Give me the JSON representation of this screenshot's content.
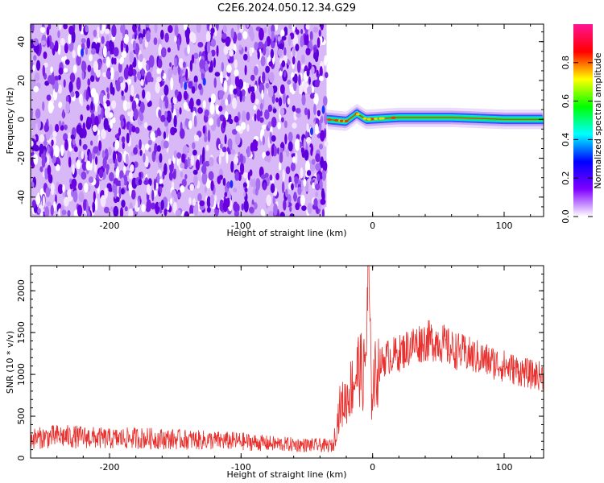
{
  "title": "C2E6.2024.050.12.34.G29",
  "chart_data": [
    {
      "type": "heatmap",
      "title": "C2E6.2024.050.12.34.G29",
      "xlabel": "Height of straight line (km)",
      "ylabel": "Frequency (Hz)",
      "xlim": [
        -260,
        130
      ],
      "ylim": [
        -50,
        49
      ],
      "xticks": [
        -200,
        -100,
        0,
        100
      ],
      "yticks": [
        -40,
        -20,
        0,
        20,
        40
      ],
      "noise_region": {
        "x_range": [
          -260,
          -35
        ],
        "frequency_range": [
          -50,
          49
        ],
        "amplitude": "low (0.0-0.2)"
      },
      "signal_track": {
        "x_range": [
          -35,
          130
        ],
        "center_frequency_hz": [
          {
            "x": -35,
            "f": 0
          },
          {
            "x": -20,
            "f": -1
          },
          {
            "x": -12,
            "f": 3
          },
          {
            "x": -5,
            "f": 0
          },
          {
            "x": 20,
            "f": 1
          },
          {
            "x": 60,
            "f": 1
          },
          {
            "x": 100,
            "f": 0
          },
          {
            "x": 130,
            "f": 0
          }
        ],
        "peak_amplitude": 0.95
      },
      "colorbar": {
        "label": "Normalized spectral amplitude",
        "range": [
          0.0,
          1.0
        ],
        "ticks": [
          "0.0",
          "0.2",
          "0.4",
          "0.6",
          "0.8"
        ],
        "colors": [
          "#ffffff",
          "#7f00ff",
          "#0000ff",
          "#00ffff",
          "#00ff00",
          "#ffff00",
          "#ff0000",
          "#ff1493"
        ]
      }
    },
    {
      "type": "line",
      "xlabel": "Height of straight line (km)",
      "ylabel": "SNR (10 * v/v)",
      "xlim": [
        -260,
        130
      ],
      "ylim": [
        0,
        2300
      ],
      "xticks": [
        -200,
        -100,
        0,
        100
      ],
      "yticks": [
        0,
        500,
        1000,
        1500,
        2000
      ],
      "series": [
        {
          "color": "#e8312e",
          "points": [
            {
              "x": -260,
              "y": 230
            },
            {
              "x": -240,
              "y": 260
            },
            {
              "x": -220,
              "y": 250
            },
            {
              "x": -200,
              "y": 230
            },
            {
              "x": -180,
              "y": 240
            },
            {
              "x": -160,
              "y": 230
            },
            {
              "x": -140,
              "y": 220
            },
            {
              "x": -120,
              "y": 210
            },
            {
              "x": -100,
              "y": 200
            },
            {
              "x": -80,
              "y": 175
            },
            {
              "x": -60,
              "y": 160
            },
            {
              "x": -40,
              "y": 150
            },
            {
              "x": -30,
              "y": 145
            },
            {
              "x": -25,
              "y": 600
            },
            {
              "x": -20,
              "y": 700
            },
            {
              "x": -15,
              "y": 900
            },
            {
              "x": -10,
              "y": 1100
            },
            {
              "x": -7,
              "y": 950
            },
            {
              "x": -5,
              "y": 1300
            },
            {
              "x": -3,
              "y": 2300
            },
            {
              "x": -1,
              "y": 700
            },
            {
              "x": 0,
              "y": 900
            },
            {
              "x": 5,
              "y": 1100
            },
            {
              "x": 10,
              "y": 1200
            },
            {
              "x": 20,
              "y": 1250
            },
            {
              "x": 30,
              "y": 1350
            },
            {
              "x": 40,
              "y": 1400
            },
            {
              "x": 50,
              "y": 1400
            },
            {
              "x": 60,
              "y": 1300
            },
            {
              "x": 70,
              "y": 1250
            },
            {
              "x": 80,
              "y": 1200
            },
            {
              "x": 90,
              "y": 1150
            },
            {
              "x": 100,
              "y": 1100
            },
            {
              "x": 110,
              "y": 1050
            },
            {
              "x": 120,
              "y": 1000
            },
            {
              "x": 130,
              "y": 980
            }
          ]
        }
      ]
    }
  ]
}
